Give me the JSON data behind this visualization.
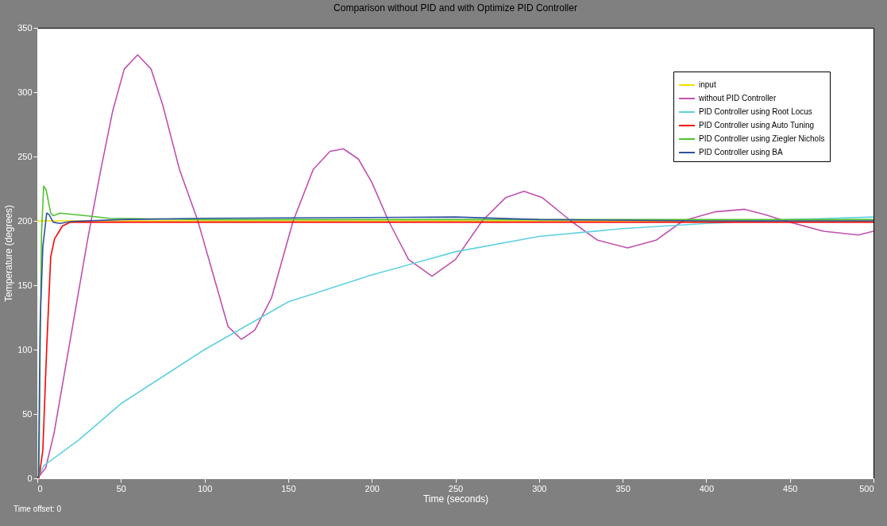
{
  "chart_data": {
    "type": "line",
    "title": "Comparison without PID and with Optimize PID Controller",
    "xlabel": "Time (seconds)",
    "ylabel": "Temperature (degrees)",
    "xlim": [
      0,
      500
    ],
    "ylim": [
      0,
      350
    ],
    "xticks": [
      0,
      50,
      100,
      150,
      200,
      250,
      300,
      350,
      400,
      450,
      500
    ],
    "yticks": [
      0,
      50,
      100,
      150,
      200,
      250,
      300,
      350
    ],
    "grid": false,
    "legend": "top right",
    "marker": "none",
    "line_style": "solid",
    "annotations": [
      "Time offset:  0"
    ],
    "series": [
      {
        "name": "input",
        "color": "#f0e000",
        "x": [
          0,
          500
        ],
        "values": [
          200,
          200
        ]
      },
      {
        "name": "without PID Controller",
        "color": "#c050b0",
        "x": [
          0,
          5,
          10,
          20,
          30,
          38,
          45,
          52,
          60,
          68,
          75,
          85,
          96,
          107,
          114,
          122,
          130,
          140,
          153,
          165,
          175,
          183,
          192,
          200,
          210,
          222,
          236,
          250,
          266,
          280,
          291,
          302,
          319,
          335,
          353,
          370,
          386,
          405,
          423,
          435,
          447,
          470,
          491,
          500
        ],
        "values": [
          0,
          8,
          35,
          110,
          185,
          240,
          285,
          318,
          329,
          318,
          290,
          240,
          200,
          150,
          118,
          108,
          115,
          140,
          200,
          240,
          254,
          256,
          248,
          230,
          200,
          170,
          157,
          170,
          200,
          218,
          223,
          218,
          200,
          185,
          179,
          185,
          200,
          207,
          209,
          205,
          200,
          192,
          189,
          192
        ]
      },
      {
        "name": "PID Controller using Root Locus",
        "color": "#60d0e0",
        "x": [
          0,
          4,
          25,
          50,
          100,
          150,
          200,
          250,
          300,
          350,
          400,
          450,
          500
        ],
        "values": [
          0,
          10,
          30,
          58,
          100,
          137,
          158,
          176,
          188,
          194,
          198,
          201,
          203
        ]
      },
      {
        "name": "PID Controller using Auto Tuning",
        "color": "#ff0000",
        "x": [
          0,
          1,
          3.3,
          5.6,
          8,
          10.3,
          15,
          19.7,
          500
        ],
        "values": [
          0,
          0,
          22,
          101,
          172,
          186,
          196,
          199,
          199
        ]
      },
      {
        "name": "PID Controller using Ziegler Nichols",
        "color": "#50c030",
        "x": [
          0,
          1,
          1.7,
          2.5,
          3.8,
          5.3,
          8,
          9.5,
          13.5,
          29,
          43,
          100,
          500
        ],
        "values": [
          0,
          2,
          101,
          190,
          227,
          224,
          206,
          204,
          206,
          204,
          202,
          201,
          201
        ]
      },
      {
        "name": "PID Controller using BA",
        "color": "#3050a0",
        "x": [
          0,
          0.7,
          1.7,
          3.3,
          5.6,
          7,
          9.5,
          13.5,
          20,
          50,
          100,
          250,
          300,
          400,
          500
        ],
        "values": [
          0,
          2,
          121,
          180,
          206,
          205,
          199,
          198,
          199.5,
          201,
          202,
          203,
          201,
          200,
          200
        ]
      }
    ]
  }
}
